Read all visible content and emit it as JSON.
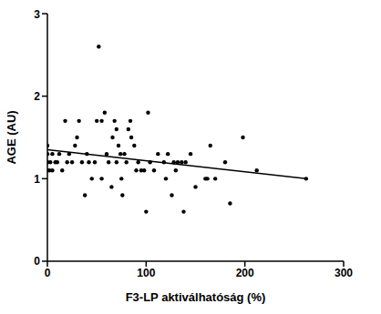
{
  "chart_data": {
    "type": "scatter",
    "x_label": "F3-LP aktiválhatóság (%)",
    "y_label": "AGE (AU)",
    "xlim": [
      0,
      300
    ],
    "ylim": [
      0,
      3
    ],
    "xticks": [
      0,
      100,
      200,
      300
    ],
    "yticks": [
      0,
      1,
      2,
      3
    ],
    "color": "#000000",
    "marker": "circle",
    "grid": false,
    "x": [
      0,
      0,
      0,
      0,
      0,
      2,
      3,
      5,
      5,
      8,
      10,
      12,
      15,
      18,
      20,
      22,
      25,
      28,
      30,
      32,
      35,
      38,
      40,
      42,
      45,
      48,
      50,
      52,
      55,
      55,
      58,
      60,
      62,
      65,
      66,
      68,
      70,
      70,
      72,
      74,
      75,
      76,
      78,
      80,
      82,
      84,
      85,
      88,
      90,
      92,
      95,
      98,
      100,
      102,
      104,
      108,
      112,
      118,
      120,
      122,
      126,
      128,
      130,
      132,
      136,
      138,
      140,
      145,
      150,
      160,
      162,
      165,
      170,
      180,
      185,
      198,
      212,
      262
    ],
    "values": [
      1.1,
      1.2,
      1.2,
      1.3,
      1.4,
      1.1,
      1.2,
      1.1,
      1.3,
      1.2,
      1.2,
      1.3,
      1.1,
      1.7,
      1.2,
      1.3,
      1.2,
      1.4,
      1.5,
      1.7,
      1.2,
      0.8,
      1.3,
      1.2,
      1.0,
      1.2,
      1.7,
      2.6,
      1.7,
      1.0,
      1.8,
      1.3,
      1.2,
      0.9,
      1.5,
      1.7,
      1.6,
      1.2,
      1.4,
      1.3,
      1.0,
      0.8,
      1.3,
      1.2,
      1.6,
      1.7,
      1.5,
      1.4,
      1.1,
      1.2,
      1.1,
      1.1,
      0.6,
      1.8,
      1.2,
      1.1,
      1.3,
      1.2,
      1.0,
      1.3,
      0.8,
      1.2,
      1.1,
      1.2,
      1.2,
      0.6,
      1.2,
      1.3,
      0.9,
      1.0,
      1.0,
      1.4,
      1.0,
      1.2,
      0.7,
      1.5,
      1.1,
      1.0
    ],
    "fit_line": {
      "x": [
        0,
        262
      ],
      "values": [
        1.35,
        1.0
      ],
      "line_style": "solid"
    }
  }
}
